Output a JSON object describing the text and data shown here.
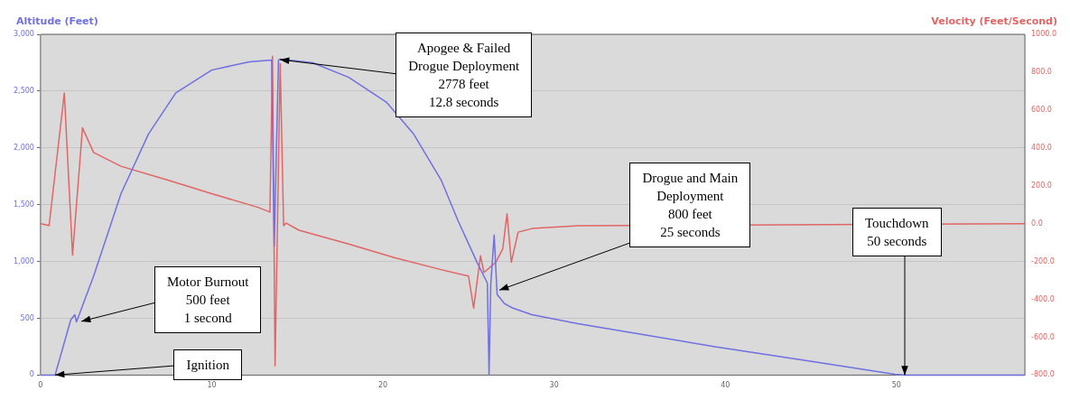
{
  "chart_data": {
    "type": "line",
    "ylabel": "Altitude (Feet)",
    "y2label": "Velocity (Feet/Second)",
    "xlim": [
      0,
      57.5
    ],
    "xticks": [
      0,
      10,
      20,
      30,
      40,
      50
    ],
    "ylim": [
      0,
      3000
    ],
    "yticks": [
      {
        "value": 0,
        "label": "0"
      },
      {
        "value": 500,
        "label": "500"
      },
      {
        "value": 1000,
        "label": "1,000"
      },
      {
        "value": 1500,
        "label": "1,500"
      },
      {
        "value": 2000,
        "label": "2,000"
      },
      {
        "value": 2500,
        "label": "2,500"
      },
      {
        "value": 3000,
        "label": "3,000"
      }
    ],
    "y2lim": [
      -800,
      1000
    ],
    "y2ticks": [
      {
        "value": -800,
        "label": "-800.0"
      },
      {
        "value": -600,
        "label": "-600.0"
      },
      {
        "value": -400,
        "label": "-400.0"
      },
      {
        "value": -200,
        "label": "-200.0"
      },
      {
        "value": 0,
        "label": "0.0"
      },
      {
        "value": 200,
        "label": "200.0"
      },
      {
        "value": 400,
        "label": "400.0"
      },
      {
        "value": 600,
        "label": "600.0"
      },
      {
        "value": 800,
        "label": "800.0"
      },
      {
        "value": 1000,
        "label": "1000.0"
      }
    ],
    "grid": "y",
    "legend": false,
    "marker": "none",
    "line_style": "solid",
    "series": [
      {
        "color": "#7070e0",
        "x": [
          0,
          0.85,
          1.76,
          2.0,
          2.1,
          3.1,
          4.7,
          6.3,
          7.9,
          10.0,
          12.2,
          13.5,
          13.65,
          13.9,
          14.0,
          15.9,
          18.0,
          20.2,
          21.8,
          23.4,
          24.4,
          25.5,
          26.1,
          26.2,
          26.3,
          26.5,
          26.67,
          27.1,
          27.6,
          28.7,
          31.4,
          34.0,
          39.4,
          44.7,
          49.9,
          50.6,
          57.5
        ],
        "values": [
          0,
          0,
          484,
          532,
          468,
          871,
          1597,
          2121,
          2484,
          2685,
          2758,
          2774,
          1137,
          2774,
          2782,
          2750,
          2621,
          2403,
          2121,
          1718,
          1355,
          992,
          810,
          0,
          800,
          1234,
          710,
          629,
          589,
          532,
          452,
          387,
          250,
          129,
          8,
          0,
          0
        ]
      },
      {
        "color": "#e06666",
        "axis": "y2",
        "x": [
          0,
          0.5,
          1.39,
          1.87,
          2.45,
          3.1,
          4.7,
          7.4,
          10.0,
          12.7,
          13.4,
          13.55,
          13.7,
          14.0,
          14.2,
          14.35,
          15.1,
          18.0,
          20.7,
          23.4,
          25.0,
          25.3,
          25.7,
          25.9,
          26.6,
          27.0,
          27.25,
          27.5,
          27.9,
          28.7,
          31.4,
          57.5
        ],
        "values": [
          0,
          -10,
          690,
          -166,
          506,
          376,
          303,
          231,
          158,
          86,
          61,
          884,
          -751,
          845,
          -11,
          3,
          -35,
          -108,
          -180,
          -243,
          -277,
          -446,
          -170,
          -258,
          -204,
          -133,
          52,
          -204,
          -45,
          -26,
          -11,
          0
        ]
      }
    ],
    "annotations": [
      {
        "text": "Apogee & Failed\nDrogue Deployment\n2778 feet\n12.8 seconds",
        "x": 14.0,
        "y": 2778
      },
      {
        "text": "Drogue and Main\nDeployment\n800 feet\n25 seconds",
        "x": 26.8,
        "y": 750
      },
      {
        "text": "Touchdown\n50 seconds",
        "x": 50.5,
        "y": 0
      },
      {
        "text": "Motor Burnout\n500 feet\n1 second",
        "x": 2.4,
        "y": 470
      },
      {
        "text": "Ignition",
        "x": 0.85,
        "y": 0
      }
    ]
  }
}
